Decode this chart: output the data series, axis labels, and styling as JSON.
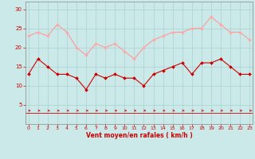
{
  "x": [
    0,
    1,
    2,
    3,
    4,
    5,
    6,
    7,
    8,
    9,
    10,
    11,
    12,
    13,
    14,
    15,
    16,
    17,
    18,
    19,
    20,
    21,
    22,
    23
  ],
  "wind_avg": [
    13,
    17,
    15,
    13,
    13,
    12,
    9,
    13,
    12,
    13,
    12,
    12,
    10,
    13,
    14,
    15,
    16,
    13,
    16,
    16,
    17,
    15,
    13,
    13
  ],
  "wind_gust": [
    23,
    24,
    23,
    26,
    24,
    20,
    18,
    21,
    20,
    21,
    19,
    17,
    20,
    22,
    23,
    24,
    24,
    25,
    25,
    28,
    26,
    24,
    24,
    22
  ],
  "bg_color": "#cce9e9",
  "grid_color": "#aad0d0",
  "line_avg_color": "#cc0000",
  "line_gust_color": "#ff9999",
  "marker_avg_color": "#cc0000",
  "marker_gust_color": "#ffaaaa",
  "xlabel": "Vent moyen/en rafales ( km/h )",
  "xlabel_color": "#cc0000",
  "tick_color": "#cc0000",
  "spine_color": "#888888",
  "ylim": [
    0,
    32
  ],
  "yticks": [
    5,
    10,
    15,
    20,
    25,
    30
  ],
  "xticks": [
    0,
    1,
    2,
    3,
    4,
    5,
    6,
    7,
    8,
    9,
    10,
    11,
    12,
    13,
    14,
    15,
    16,
    17,
    18,
    19,
    20,
    21,
    22,
    23
  ]
}
